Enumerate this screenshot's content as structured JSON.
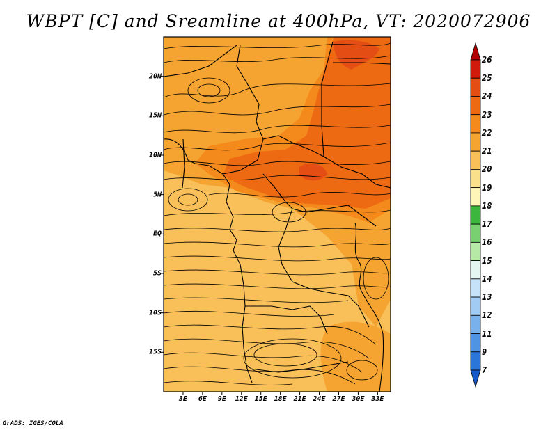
{
  "title": "WBPT [C] and Sreamline at 400hPa, VT: 2020072906",
  "credit": "GrADS: IGES/COLA",
  "map": {
    "lon_range": [
      0,
      35
    ],
    "lat_range": [
      -20,
      25
    ],
    "lat_ticks": [
      {
        "value": 20,
        "label": "20N"
      },
      {
        "value": 15,
        "label": "15N"
      },
      {
        "value": 10,
        "label": "10N"
      },
      {
        "value": 5,
        "label": "5N"
      },
      {
        "value": 0,
        "label": "EQ"
      },
      {
        "value": -5,
        "label": "5S"
      },
      {
        "value": -10,
        "label": "10S"
      },
      {
        "value": -15,
        "label": "15S"
      }
    ],
    "lon_ticks": [
      {
        "value": 3,
        "label": "3E"
      },
      {
        "value": 6,
        "label": "6E"
      },
      {
        "value": 9,
        "label": "9E"
      },
      {
        "value": 12,
        "label": "12E"
      },
      {
        "value": 15,
        "label": "15E"
      },
      {
        "value": 18,
        "label": "18E"
      },
      {
        "value": 21,
        "label": "21E"
      },
      {
        "value": 24,
        "label": "24E"
      },
      {
        "value": 27,
        "label": "27E"
      },
      {
        "value": 30,
        "label": "30E"
      },
      {
        "value": 33,
        "label": "33E"
      }
    ],
    "fill_colors": {
      "c20": "#f9c05a",
      "c21": "#f6a431",
      "c22": "#f58a1c",
      "c23": "#ee6a12",
      "c24": "#e44e14"
    }
  },
  "colorbar": {
    "levels": [
      "26",
      "25",
      "24",
      "23",
      "22",
      "21",
      "20",
      "19",
      "18",
      "17",
      "16",
      "15",
      "14",
      "13",
      "12",
      "11",
      "9",
      "7"
    ],
    "colors": [
      "#b30000",
      "#cf1a0c",
      "#e44e14",
      "#ee6a12",
      "#f58a1c",
      "#f6a431",
      "#f9c05a",
      "#fbe08c",
      "#fef6b8",
      "#3db63d",
      "#78d070",
      "#b6e8a6",
      "#e4f7f0",
      "#c6e2f8",
      "#a2cbf3",
      "#79b1ec",
      "#4f94e3",
      "#2a76d8",
      "#1659c8"
    ]
  }
}
